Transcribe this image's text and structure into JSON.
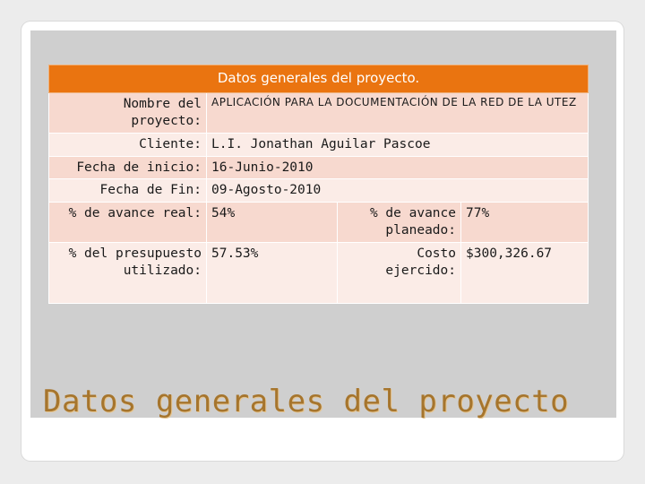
{
  "table": {
    "header": "Datos generales del proyecto.",
    "rows": {
      "nombre": {
        "label": "Nombre del proyecto:",
        "value": "APLICACIÓN PARA LA DOCUMENTACIÓN DE LA RED DE LA UTEZ"
      },
      "cliente": {
        "label": "Cliente:",
        "value": "L.I. Jonathan Aguilar Pascoe"
      },
      "inicio": {
        "label": "Fecha de inicio:",
        "value": "16-Junio-2010"
      },
      "fin": {
        "label": "Fecha de Fin:",
        "value": "09-Agosto-2010"
      },
      "avance_real": {
        "label": "% de avance real:",
        "value": "54%"
      },
      "avance_planeado": {
        "label": "% de avance planeado:",
        "value": "77%"
      },
      "presupuesto": {
        "label": "% del presupuesto utilizado:",
        "value": "57.53%"
      },
      "costo": {
        "label": "Costo ejercido:",
        "value": "$300,326.67"
      }
    }
  },
  "slide_title": "Datos generales del proyecto",
  "colors": {
    "header_bg": "#ea7410",
    "row_a": "#f7d9cf",
    "row_b": "#fbece7",
    "title": "#a6752d"
  }
}
